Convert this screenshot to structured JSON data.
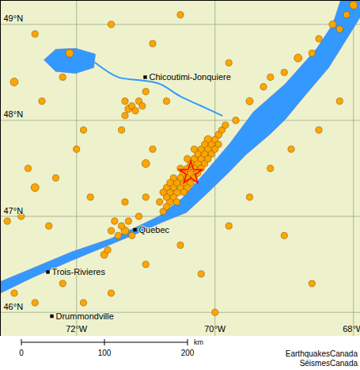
{
  "chart_data": {
    "type": "map",
    "xlim": [
      -73.1,
      -67.9
    ],
    "ylim": [
      45.75,
      49.25
    ],
    "xticks": [
      {
        "value": -72,
        "label": "72°W"
      },
      {
        "value": -70,
        "label": "70°W"
      },
      {
        "value": -68,
        "label": "68°W"
      }
    ],
    "yticks": [
      {
        "value": 46,
        "label": "46°N"
      },
      {
        "value": 47,
        "label": "47°N"
      },
      {
        "value": 48,
        "label": "48°N"
      },
      {
        "value": 49,
        "label": "49°N"
      }
    ],
    "grid": true,
    "water": [
      [
        [
          -73.1,
          46.32
        ],
        [
          -72.7,
          46.44
        ],
        [
          -72.071,
          46.63
        ],
        [
          -71.5,
          46.77
        ],
        [
          -71.157,
          46.88
        ],
        [
          -70.814,
          47.0
        ],
        [
          -70.471,
          47.19
        ],
        [
          -70.129,
          47.47
        ],
        [
          -69.786,
          47.76
        ],
        [
          -69.443,
          48.09
        ],
        [
          -68.986,
          48.38
        ],
        [
          -68.529,
          48.75
        ],
        [
          -68.3,
          49.0
        ],
        [
          -68.186,
          49.25
        ],
        [
          -67.9,
          49.25
        ],
        [
          -67.9,
          49.08
        ],
        [
          -68.071,
          48.88
        ],
        [
          -68.357,
          48.55
        ],
        [
          -68.7,
          48.26
        ],
        [
          -68.986,
          48.01
        ],
        [
          -69.214,
          47.85
        ],
        [
          -69.557,
          47.64
        ],
        [
          -69.786,
          47.47
        ],
        [
          -70.129,
          47.23
        ],
        [
          -70.414,
          47.04
        ],
        [
          -70.757,
          46.94
        ],
        [
          -71.1,
          46.83
        ],
        [
          -71.5,
          46.71
        ],
        [
          -72.071,
          46.54
        ],
        [
          -72.643,
          46.36
        ],
        [
          -73.1,
          46.2
        ],
        [
          -73.1,
          46.32
        ]
      ],
      [
        [
          -72.471,
          48.63
        ],
        [
          -72.3,
          48.74
        ],
        [
          -72.014,
          48.75
        ],
        [
          -71.729,
          48.69
        ],
        [
          -71.751,
          48.55
        ],
        [
          -72.014,
          48.49
        ],
        [
          -72.3,
          48.51
        ],
        [
          -72.471,
          48.63
        ]
      ]
    ],
    "rivers": [
      [
        [
          -71.729,
          48.6
        ],
        [
          -71.4,
          48.45
        ],
        [
          -71.1,
          48.42
        ],
        [
          -70.8,
          48.38
        ],
        [
          -70.5,
          48.25
        ],
        [
          -70.2,
          48.15
        ],
        [
          -69.9,
          48.05
        ]
      ]
    ],
    "cities": [
      {
        "label": "Chicoutimi-Jonquiere",
        "lon": -71.009,
        "lat": 48.45
      },
      {
        "label": "Quebec",
        "lon": -71.157,
        "lat": 46.86
      },
      {
        "label": "Trois-Rivieres",
        "lon": -72.414,
        "lat": 46.42
      },
      {
        "label": "Drummondville",
        "lon": -72.357,
        "lat": 45.96
      }
    ],
    "earthquakes": {
      "color": "#ffa500",
      "points": [
        [
          -70.75,
          47.05,
          2
        ],
        [
          -70.7,
          47.1,
          2
        ],
        [
          -70.65,
          47.15,
          2.5
        ],
        [
          -70.6,
          47.2,
          2
        ],
        [
          -70.55,
          47.25,
          3
        ],
        [
          -70.5,
          47.3,
          2
        ],
        [
          -70.45,
          47.35,
          2
        ],
        [
          -70.4,
          47.4,
          2.5
        ],
        [
          -70.35,
          47.45,
          2
        ],
        [
          -70.3,
          47.5,
          2
        ],
        [
          -70.25,
          47.55,
          3
        ],
        [
          -70.2,
          47.6,
          2
        ],
        [
          -70.15,
          47.65,
          2
        ],
        [
          -70.1,
          47.7,
          2.5
        ],
        [
          -70.05,
          47.75,
          2
        ],
        [
          -70.0,
          47.8,
          2
        ],
        [
          -69.95,
          47.85,
          2.5
        ],
        [
          -70.6,
          47.3,
          2
        ],
        [
          -70.5,
          47.4,
          2
        ],
        [
          -70.4,
          47.5,
          2
        ],
        [
          -70.3,
          47.6,
          2
        ],
        [
          -70.2,
          47.7,
          2
        ],
        [
          -70.1,
          47.8,
          3
        ],
        [
          -70.65,
          47.25,
          2
        ],
        [
          -70.55,
          47.35,
          2
        ],
        [
          -70.45,
          47.45,
          3
        ],
        [
          -70.35,
          47.55,
          2
        ],
        [
          -70.25,
          47.65,
          2
        ],
        [
          -70.15,
          47.75,
          2
        ],
        [
          -70.7,
          47.2,
          2
        ],
        [
          -70.55,
          47.15,
          2
        ],
        [
          -70.45,
          47.25,
          2
        ],
        [
          -70.35,
          47.35,
          2
        ],
        [
          -70.25,
          47.45,
          2
        ],
        [
          -70.15,
          47.55,
          2
        ],
        [
          -70.05,
          47.65,
          2
        ],
        [
          -69.95,
          47.75,
          2
        ],
        [
          -70.4,
          47.3,
          2.5
        ],
        [
          -70.3,
          47.4,
          2
        ],
        [
          -70.2,
          47.5,
          2
        ],
        [
          -70.1,
          47.6,
          2
        ],
        [
          -70.0,
          47.7,
          2
        ],
        [
          -70.8,
          47.15,
          2
        ],
        [
          -70.7,
          47.3,
          2
        ],
        [
          -70.6,
          47.4,
          2
        ],
        [
          -70.5,
          47.5,
          2
        ],
        [
          -70.4,
          47.6,
          2
        ],
        [
          -70.3,
          47.7,
          2
        ],
        [
          -70.75,
          47.25,
          2
        ],
        [
          -70.65,
          47.35,
          2
        ],
        [
          -69.9,
          47.9,
          2
        ],
        [
          -69.85,
          47.95,
          2
        ],
        [
          -69.7,
          48.0,
          2
        ],
        [
          -69.5,
          48.2,
          2.5
        ],
        [
          -69.3,
          48.35,
          2
        ],
        [
          -69.0,
          48.5,
          2
        ],
        [
          -68.8,
          48.65,
          3
        ],
        [
          -68.5,
          48.85,
          2
        ],
        [
          -68.3,
          49.0,
          2.5
        ],
        [
          -68.1,
          49.1,
          2
        ],
        [
          -68.0,
          49.2,
          3
        ],
        [
          -68.2,
          48.95,
          2
        ],
        [
          -68.6,
          48.7,
          2
        ],
        [
          -69.2,
          48.45,
          2
        ],
        [
          -71.25,
          48.12,
          2.5
        ],
        [
          -71.2,
          48.15,
          2
        ],
        [
          -71.15,
          48.1,
          2
        ],
        [
          -71.3,
          48.2,
          2
        ],
        [
          -71.1,
          48.2,
          2
        ],
        [
          -71.05,
          48.15,
          2
        ],
        [
          -71.3,
          48.05,
          2
        ],
        [
          -71.35,
          47.9,
          2
        ],
        [
          -72.1,
          48.7,
          3
        ],
        [
          -72.2,
          48.45,
          2
        ],
        [
          -71.0,
          48.3,
          2
        ],
        [
          -70.7,
          48.2,
          2
        ],
        [
          -70.9,
          47.7,
          2
        ],
        [
          -71.0,
          47.55,
          3
        ],
        [
          -71.3,
          46.85,
          3
        ],
        [
          -71.35,
          46.9,
          2
        ],
        [
          -71.25,
          46.95,
          2
        ],
        [
          -71.4,
          46.8,
          2
        ],
        [
          -71.2,
          46.8,
          2
        ],
        [
          -71.1,
          47.0,
          2
        ],
        [
          -71.5,
          46.85,
          2
        ],
        [
          -71.45,
          46.95,
          2
        ],
        [
          -71.6,
          46.6,
          2.5
        ],
        [
          -71.55,
          46.65,
          2
        ],
        [
          -71.0,
          47.2,
          2
        ],
        [
          -71.3,
          47.15,
          2
        ],
        [
          -71.8,
          47.2,
          2
        ],
        [
          -72.8,
          47.0,
          2
        ],
        [
          -73.0,
          46.95,
          2
        ],
        [
          -72.7,
          47.5,
          2
        ],
        [
          -72.3,
          47.4,
          2
        ],
        [
          -72.0,
          47.7,
          2
        ],
        [
          -71.9,
          47.9,
          2
        ],
        [
          -72.5,
          48.2,
          2
        ],
        [
          -72.9,
          48.4,
          3
        ],
        [
          -72.6,
          47.3,
          3
        ],
        [
          -72.4,
          46.9,
          2
        ],
        [
          -72.9,
          46.2,
          2
        ],
        [
          -72.6,
          46.1,
          2
        ],
        [
          -72.2,
          46.3,
          2
        ],
        [
          -71.9,
          46.1,
          2
        ],
        [
          -71.5,
          46.2,
          2
        ],
        [
          -71.0,
          46.5,
          2
        ],
        [
          -70.5,
          46.7,
          2
        ],
        [
          -70.2,
          46.4,
          2
        ],
        [
          -69.8,
          46.9,
          2
        ],
        [
          -69.5,
          47.2,
          2
        ],
        [
          -69.2,
          47.5,
          2
        ],
        [
          -68.9,
          47.7,
          2
        ],
        [
          -68.5,
          47.9,
          2
        ],
        [
          -68.2,
          48.2,
          2
        ],
        [
          -70.9,
          48.8,
          2
        ],
        [
          -71.5,
          49.0,
          2
        ],
        [
          -70.5,
          49.1,
          2
        ],
        [
          -72.6,
          48.9,
          2
        ],
        [
          -69.8,
          48.6,
          2
        ],
        [
          -70.0,
          46.0,
          2
        ],
        [
          -68.6,
          46.3,
          2
        ],
        [
          -69.0,
          46.8,
          2
        ]
      ]
    },
    "epicenter": {
      "lon": -70.35,
      "lat": 47.45,
      "color": "#ff0000",
      "marker": "star"
    },
    "scale_bar": {
      "ticks": [
        0,
        100,
        200
      ],
      "unit": "km"
    },
    "credits": [
      "EarthquakesCanada",
      "SéismesCanada"
    ]
  }
}
